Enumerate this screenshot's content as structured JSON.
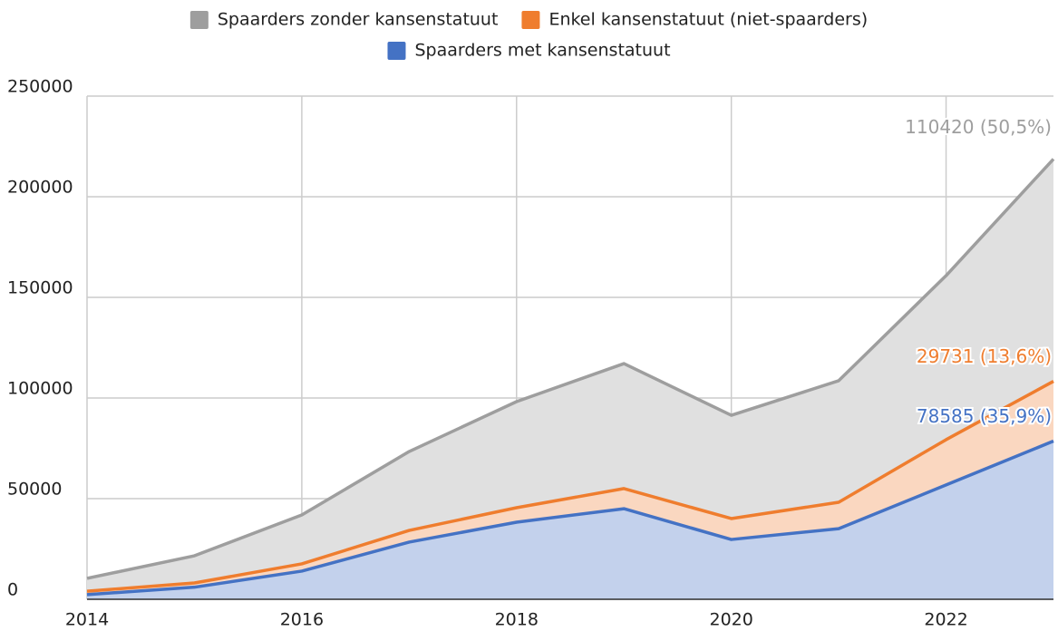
{
  "chart_data": {
    "type": "stacked_area",
    "x": [
      2014,
      2015,
      2016,
      2017,
      2018,
      2019,
      2020,
      2021,
      2022,
      2023
    ],
    "series": [
      {
        "name": "Spaarders zonder kansenstatuut",
        "color": "#9e9e9e",
        "fill": "#e0e0e0",
        "values": [
          6400,
          13500,
          24300,
          39200,
          52700,
          62100,
          51300,
          60400,
          81500,
          110420
        ],
        "value_labels": [
          null,
          null,
          null,
          null,
          null,
          null,
          null,
          null,
          null,
          "110420 (50,5%)"
        ]
      },
      {
        "name": "Enkel kansenstatuut (niet-spaarders)",
        "color": "#ef7d2e",
        "fill": "#fad7c0",
        "values": [
          1700,
          2100,
          3600,
          5800,
          7200,
          10000,
          10400,
          13100,
          22500,
          29731
        ],
        "value_labels": [
          null,
          null,
          null,
          null,
          null,
          null,
          null,
          null,
          null,
          "29731 (13,6%)"
        ]
      },
      {
        "name": "Spaarders met kansenstatuut",
        "color": "#4472c4",
        "fill": "#c3d1ec",
        "values": [
          2300,
          6000,
          14000,
          28400,
          38300,
          45000,
          29700,
          35100,
          56800,
          78585
        ],
        "value_labels": [
          null,
          null,
          null,
          null,
          null,
          null,
          null,
          null,
          null,
          "78585 (35,9%)"
        ]
      }
    ],
    "xlim": [
      2014,
      2023
    ],
    "xticks": [
      2014,
      2016,
      2018,
      2020,
      2022
    ],
    "ylim": [
      0,
      250000
    ],
    "yticks": [
      0,
      50000,
      100000,
      150000,
      200000,
      250000
    ],
    "grid": true,
    "legend": "top"
  }
}
